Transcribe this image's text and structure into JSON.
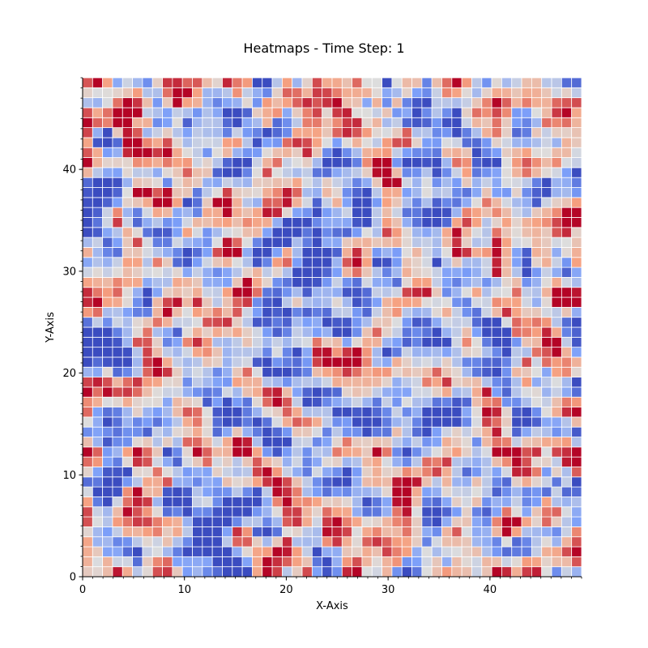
{
  "chart_data": {
    "type": "heatmap",
    "title": "Heatmaps - Time Step: 1",
    "xlabel": "X-Axis",
    "ylabel": "Y-Axis",
    "xlim": [
      0,
      49
    ],
    "ylim": [
      0,
      49
    ],
    "x_ticks": [
      0,
      10,
      20,
      30,
      40
    ],
    "y_ticks": [
      0,
      10,
      20,
      30,
      40
    ],
    "grid": true,
    "colormap": "coolwarm",
    "value_range": [
      0,
      1
    ],
    "grid_size": [
      50,
      50
    ],
    "colors": {
      "low": "#3b4cc0",
      "mid": "#dddddd",
      "high": "#b40426",
      "cell_border": "#ffffff"
    }
  }
}
